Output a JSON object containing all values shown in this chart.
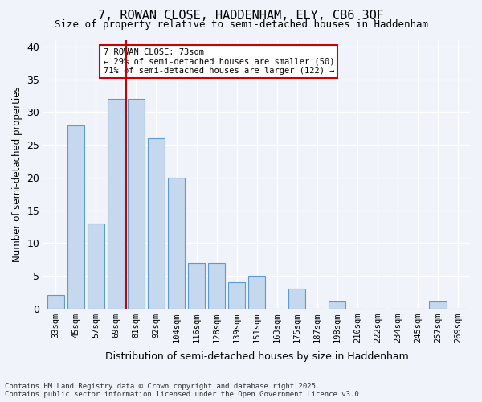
{
  "title": "7, ROWAN CLOSE, HADDENHAM, ELY, CB6 3QF",
  "subtitle": "Size of property relative to semi-detached houses in Haddenham",
  "xlabel": "Distribution of semi-detached houses by size in Haddenham",
  "ylabel": "Number of semi-detached properties",
  "categories": [
    "33sqm",
    "45sqm",
    "57sqm",
    "69sqm",
    "81sqm",
    "92sqm",
    "104sqm",
    "116sqm",
    "128sqm",
    "139sqm",
    "151sqm",
    "163sqm",
    "175sqm",
    "187sqm",
    "198sqm",
    "210sqm",
    "222sqm",
    "234sqm",
    "245sqm",
    "257sqm",
    "269sqm"
  ],
  "values": [
    2,
    28,
    13,
    32,
    32,
    26,
    20,
    7,
    7,
    4,
    5,
    0,
    3,
    0,
    1,
    0,
    0,
    0,
    0,
    1,
    0
  ],
  "bar_color": "#c5d8ed",
  "bar_edge_color": "#5b9bd5",
  "background_color": "#f0f4fa",
  "grid_color": "#ffffff",
  "property_line_x": 3.5,
  "property_label": "7 ROWAN CLOSE: 73sqm",
  "pct_smaller": "29% of semi-detached houses are smaller (50)",
  "pct_larger": "71% of semi-detached houses are larger (122)",
  "annotation_box_color": "#ffffff",
  "annotation_box_edge": "#cc0000",
  "footnote": "Contains HM Land Registry data © Crown copyright and database right 2025.\nContains public sector information licensed under the Open Government Licence v3.0.",
  "ylim": [
    0,
    41
  ],
  "yticks": [
    0,
    5,
    10,
    15,
    20,
    25,
    30,
    35,
    40
  ]
}
